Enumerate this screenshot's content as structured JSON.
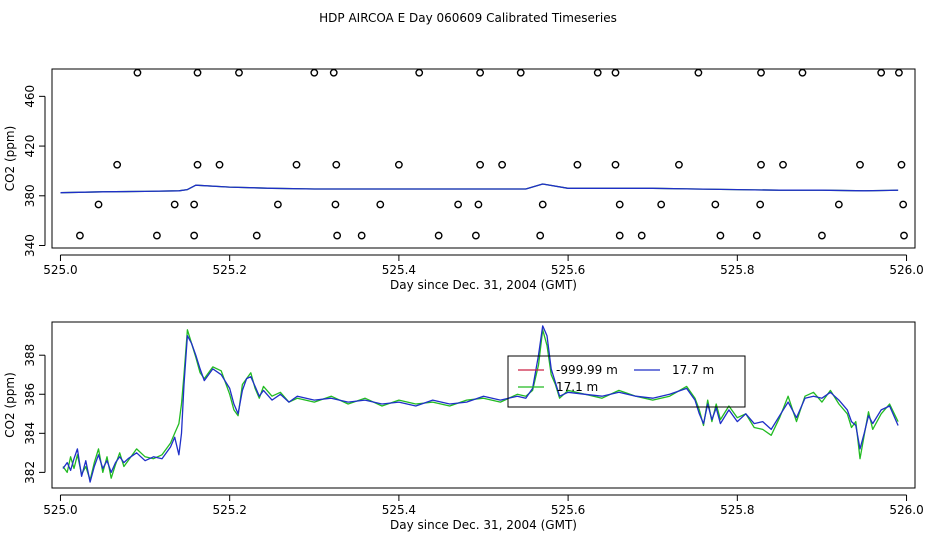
{
  "page": {
    "title": "HDP AIRCOA E  Day 060609  Calibrated Timeseries"
  },
  "chart_data": [
    {
      "type": "scatter",
      "xlabel": "Day since Dec. 31, 2004 (GMT)",
      "ylabel": "CO2 (ppm)",
      "xlim": [
        524.99,
        526.01
      ],
      "ylim": [
        338,
        482
      ],
      "xticks": [
        525.0,
        525.2,
        525.4,
        525.6,
        525.8,
        526.0
      ],
      "xtick_labels": [
        "525.0",
        "525.2",
        "525.4",
        "525.6",
        "525.8",
        "526.0"
      ],
      "yticks": [
        340,
        380,
        420,
        460
      ],
      "ytick_labels": [
        "340",
        "380",
        "420",
        "460"
      ],
      "grid": false,
      "markers": {
        "x": [
          525.091,
          525.162,
          525.211,
          525.3,
          525.323,
          525.424,
          525.496,
          525.544,
          525.635,
          525.656,
          525.754,
          525.828,
          525.877,
          525.97,
          525.991,
          525.067,
          525.162,
          525.188,
          525.279,
          525.326,
          525.4,
          525.496,
          525.522,
          525.611,
          525.656,
          525.731,
          525.828,
          525.854,
          525.945,
          525.994,
          525.045,
          525.135,
          525.158,
          525.257,
          525.325,
          525.378,
          525.47,
          525.494,
          525.57,
          525.661,
          525.71,
          525.774,
          525.827,
          525.92,
          525.996,
          525.023,
          525.114,
          525.158,
          525.232,
          525.327,
          525.356,
          525.447,
          525.491,
          525.567,
          525.661,
          525.687,
          525.78,
          525.823,
          525.9,
          525.997
        ],
        "y": [
          479,
          479,
          479,
          479,
          479,
          479,
          479,
          479,
          479,
          479,
          479,
          479,
          479,
          479,
          479,
          405,
          405,
          405,
          405,
          405,
          405,
          405,
          405,
          405,
          405,
          405,
          405,
          405,
          405,
          405,
          373,
          373,
          373,
          373,
          373,
          373,
          373,
          373,
          373,
          373,
          373,
          373,
          373,
          373,
          373,
          348,
          348,
          348,
          348,
          348,
          348,
          348,
          348,
          348,
          348,
          348,
          348,
          348,
          348,
          348
        ]
      },
      "series": [
        {
          "color": "#2f9a2f",
          "x": [
            525.0,
            525.05,
            525.1,
            525.14,
            525.15,
            525.16,
            525.2,
            525.25,
            525.3,
            525.4,
            525.5,
            525.55,
            525.57,
            525.6,
            525.7,
            525.75,
            525.8,
            525.85,
            525.9,
            525.95,
            525.99
          ],
          "y": [
            382.5,
            383.2,
            383.5,
            384,
            385,
            388.5,
            387,
            386,
            385.5,
            385.5,
            385.5,
            385.5,
            389.5,
            386,
            386,
            385.5,
            385,
            384.5,
            384.5,
            384,
            384.5
          ]
        },
        {
          "color": "#1f2fc8",
          "x": [
            525.0,
            525.05,
            525.1,
            525.14,
            525.15,
            525.16,
            525.2,
            525.25,
            525.3,
            525.4,
            525.5,
            525.55,
            525.57,
            525.6,
            525.7,
            525.75,
            525.8,
            525.85,
            525.9,
            525.95,
            525.99
          ],
          "y": [
            382.5,
            383.2,
            383.5,
            384,
            385,
            388.5,
            387,
            386,
            385.5,
            385.5,
            385.5,
            385.5,
            389.5,
            386,
            386,
            385.5,
            385,
            384.5,
            384.5,
            384,
            384.5
          ]
        }
      ]
    },
    {
      "type": "line",
      "xlabel": "Day since Dec. 31, 2004 (GMT)",
      "ylabel": "CO2 (ppm)",
      "xlim": [
        524.99,
        526.01
      ],
      "ylim": [
        381.2,
        389.7
      ],
      "xticks": [
        525.0,
        525.2,
        525.4,
        525.6,
        525.8,
        526.0
      ],
      "xtick_labels": [
        "525.0",
        "525.2",
        "525.4",
        "525.6",
        "525.8",
        "526.0"
      ],
      "yticks": [
        382,
        384,
        386,
        388
      ],
      "ytick_labels": [
        "382",
        "384",
        "386",
        "388"
      ],
      "grid": false,
      "legend": {
        "placement": "top-center",
        "entries": [
          {
            "label": "-999.99 m",
            "color": "#cc2244"
          },
          {
            "label": "17.7 m",
            "color": "#1f2fc8"
          },
          {
            "label": "17.1 m",
            "color": "#22bb22"
          }
        ]
      },
      "series": [
        {
          "name": "17.1 m",
          "color": "#22bb22",
          "x": [
            525.003,
            525.008,
            525.012,
            525.016,
            525.02,
            525.025,
            525.03,
            525.035,
            525.04,
            525.045,
            525.05,
            525.055,
            525.06,
            525.065,
            525.07,
            525.075,
            525.08,
            525.09,
            525.1,
            525.11,
            525.12,
            525.13,
            525.135,
            525.14,
            525.143,
            525.146,
            525.15,
            525.155,
            525.16,
            525.165,
            525.17,
            525.18,
            525.19,
            525.2,
            525.205,
            525.21,
            525.215,
            525.22,
            525.225,
            525.23,
            525.235,
            525.24,
            525.25,
            525.26,
            525.27,
            525.28,
            525.3,
            525.32,
            525.34,
            525.36,
            525.38,
            525.4,
            525.42,
            525.44,
            525.46,
            525.48,
            525.5,
            525.52,
            525.54,
            525.55,
            525.558,
            525.565,
            525.57,
            525.575,
            525.58,
            525.585,
            525.59,
            525.6,
            525.62,
            525.64,
            525.66,
            525.68,
            525.7,
            525.72,
            525.74,
            525.75,
            525.755,
            525.76,
            525.765,
            525.77,
            525.775,
            525.78,
            525.79,
            525.8,
            525.81,
            525.82,
            525.83,
            525.84,
            525.85,
            525.86,
            525.87,
            525.88,
            525.89,
            525.9,
            525.91,
            525.92,
            525.93,
            525.935,
            525.94,
            525.945,
            525.95,
            525.955,
            525.96,
            525.97,
            525.98,
            525.99
          ],
          "y": [
            382.3,
            382.0,
            382.8,
            382.2,
            382.9,
            381.9,
            382.3,
            381.6,
            382.5,
            383.2,
            382.0,
            382.8,
            381.7,
            382.4,
            383.0,
            382.3,
            382.6,
            383.2,
            382.8,
            382.7,
            382.9,
            383.5,
            384.0,
            384.5,
            385.5,
            387.0,
            389.3,
            388.6,
            387.9,
            387.1,
            386.8,
            387.4,
            387.2,
            386.0,
            385.2,
            384.9,
            386.5,
            386.8,
            387.1,
            386.3,
            385.8,
            386.4,
            385.9,
            386.1,
            385.6,
            385.8,
            385.6,
            385.9,
            385.5,
            385.8,
            385.4,
            385.7,
            385.5,
            385.6,
            385.4,
            385.7,
            385.8,
            385.6,
            386.0,
            385.9,
            386.2,
            387.5,
            389.3,
            388.5,
            387.0,
            386.5,
            385.8,
            386.2,
            386.0,
            385.8,
            386.2,
            385.9,
            385.7,
            385.9,
            386.4,
            385.8,
            385.2,
            384.4,
            385.7,
            384.6,
            385.5,
            384.7,
            385.4,
            384.8,
            385.0,
            384.3,
            384.2,
            383.9,
            384.8,
            385.9,
            384.6,
            385.9,
            386.1,
            385.6,
            386.2,
            385.5,
            385.0,
            384.3,
            384.6,
            382.7,
            383.9,
            385.1,
            384.2,
            385.0,
            385.5,
            384.6
          ]
        },
        {
          "name": "17.7 m",
          "color": "#1f2fc8",
          "x": [
            525.003,
            525.008,
            525.012,
            525.016,
            525.02,
            525.025,
            525.03,
            525.035,
            525.04,
            525.045,
            525.05,
            525.055,
            525.06,
            525.065,
            525.07,
            525.075,
            525.08,
            525.09,
            525.1,
            525.11,
            525.12,
            525.13,
            525.135,
            525.14,
            525.143,
            525.146,
            525.15,
            525.155,
            525.16,
            525.165,
            525.17,
            525.18,
            525.19,
            525.2,
            525.205,
            525.21,
            525.215,
            525.22,
            525.225,
            525.23,
            525.235,
            525.24,
            525.25,
            525.26,
            525.27,
            525.28,
            525.3,
            525.32,
            525.34,
            525.36,
            525.38,
            525.4,
            525.42,
            525.44,
            525.46,
            525.48,
            525.5,
            525.52,
            525.54,
            525.55,
            525.558,
            525.565,
            525.57,
            525.575,
            525.58,
            525.585,
            525.59,
            525.6,
            525.62,
            525.64,
            525.66,
            525.68,
            525.7,
            525.72,
            525.74,
            525.75,
            525.755,
            525.76,
            525.765,
            525.77,
            525.775,
            525.78,
            525.79,
            525.8,
            525.81,
            525.82,
            525.83,
            525.84,
            525.85,
            525.86,
            525.87,
            525.88,
            525.89,
            525.9,
            525.91,
            525.92,
            525.93,
            525.935,
            525.94,
            525.945,
            525.95,
            525.955,
            525.96,
            525.97,
            525.98,
            525.99
          ],
          "y": [
            382.2,
            382.5,
            382.1,
            382.7,
            383.2,
            381.8,
            382.6,
            381.5,
            382.3,
            382.9,
            382.2,
            382.6,
            382.0,
            382.5,
            382.8,
            382.5,
            382.7,
            383.0,
            382.6,
            382.8,
            382.7,
            383.3,
            383.8,
            382.9,
            384.0,
            386.5,
            389.0,
            388.6,
            388.0,
            387.3,
            386.7,
            387.3,
            387.0,
            386.3,
            385.5,
            385.0,
            386.2,
            386.8,
            386.9,
            386.4,
            385.9,
            386.2,
            385.7,
            386.0,
            385.6,
            385.9,
            385.7,
            385.8,
            385.6,
            385.7,
            385.5,
            385.6,
            385.4,
            385.7,
            385.5,
            385.6,
            385.9,
            385.7,
            385.9,
            385.8,
            386.3,
            388.0,
            389.5,
            389.0,
            387.3,
            386.6,
            385.9,
            386.1,
            386.0,
            385.9,
            386.1,
            385.9,
            385.8,
            386.0,
            386.3,
            385.7,
            385.0,
            384.5,
            385.5,
            384.7,
            385.3,
            384.5,
            385.2,
            384.6,
            385.0,
            384.5,
            384.6,
            384.2,
            384.9,
            385.6,
            384.8,
            385.8,
            385.9,
            385.8,
            386.1,
            385.7,
            385.2,
            384.6,
            384.4,
            383.2,
            384.0,
            384.9,
            384.5,
            385.2,
            385.4,
            384.4
          ]
        },
        {
          "name": "-999.99 m",
          "color": "#cc2244",
          "x": [],
          "y": []
        }
      ]
    }
  ]
}
